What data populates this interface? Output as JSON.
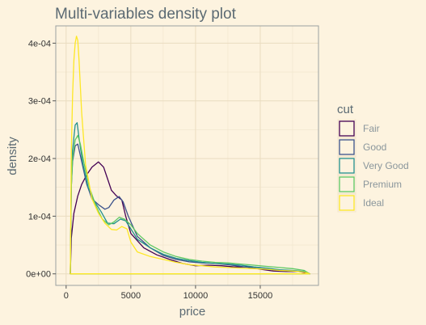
{
  "chart_data": {
    "type": "line",
    "title": "Multi-variables density plot",
    "xlabel": "price",
    "ylabel": "density",
    "xlim": [
      -800,
      19500
    ],
    "ylim": [
      -2e-05,
      0.00043
    ],
    "x_ticks": [
      0,
      5000,
      10000,
      15000
    ],
    "x_tick_labels": [
      "0",
      "5000",
      "10000",
      "15000"
    ],
    "y_ticks": [
      0,
      0.0001,
      0.0002,
      0.0003,
      0.0004
    ],
    "y_tick_labels": [
      "0e+00",
      "1e-04",
      "2e-04",
      "3e-04",
      "4e-04"
    ],
    "grid": true,
    "legend": {
      "title": "cut",
      "position": "right"
    },
    "series": [
      {
        "name": "Fair",
        "color": "#440154",
        "x": [
          326,
          400,
          600,
          900,
          1200,
          1600,
          2000,
          2500,
          2900,
          3200,
          3500,
          3900,
          4300,
          4600,
          5000,
          6000,
          7000,
          8000,
          9000,
          10000,
          11000,
          12000,
          13000,
          14000,
          15000,
          16000,
          17000,
          18000,
          18823
        ],
        "y": [
          0,
          6.2e-05,
          0.000105,
          0.000135,
          0.000155,
          0.000172,
          0.000185,
          0.000194,
          0.000185,
          0.000165,
          0.000145,
          0.000135,
          0.000128,
          0.0001,
          7e-05,
          4.5e-05,
          3.3e-05,
          2.5e-05,
          1.8e-05,
          1.4e-05,
          1.5e-05,
          1.4e-05,
          1.2e-05,
          1.2e-05,
          8e-06,
          5e-06,
          4e-06,
          4e-06,
          0
        ]
      },
      {
        "name": "Good",
        "color": "#3b528b",
        "x": [
          326,
          400,
          500,
          700,
          900,
          1200,
          1600,
          2000,
          2500,
          3000,
          3300,
          3700,
          4100,
          4400,
          4800,
          5500,
          6500,
          7500,
          8500,
          9500,
          10500,
          11500,
          12500,
          13500,
          14500,
          15500,
          16500,
          17500,
          18400,
          18823
        ],
        "y": [
          0,
          0.00015,
          0.000195,
          0.000222,
          0.000225,
          0.000195,
          0.000155,
          0.00013,
          0.00012,
          0.000112,
          0.000115,
          0.000128,
          0.000134,
          0.000125,
          0.0001,
          6.5e-05,
          4.5e-05,
          3.2e-05,
          2.5e-05,
          2.1e-05,
          1.9e-05,
          1.8e-05,
          1.6e-05,
          1.3e-05,
          1e-05,
          8e-06,
          6e-06,
          5e-06,
          4e-06,
          0
        ]
      },
      {
        "name": "Very Good",
        "color": "#21908d",
        "x": [
          326,
          400,
          500,
          700,
          850,
          1000,
          1300,
          1700,
          2200,
          2700,
          3200,
          3700,
          4200,
          4600,
          5000,
          5500,
          6500,
          7500,
          8500,
          9500,
          10500,
          11500,
          12500,
          13500,
          14500,
          15500,
          16500,
          17500,
          18400,
          18823
        ],
        "y": [
          0,
          0.00016,
          0.000215,
          0.000258,
          0.000262,
          0.000235,
          0.00019,
          0.00015,
          0.000125,
          0.000108,
          8.8e-05,
          8.7e-05,
          9.5e-05,
          9.2e-05,
          7.8e-05,
          6e-05,
          4.5e-05,
          3.4e-05,
          2.7e-05,
          2.3e-05,
          2e-05,
          1.8e-05,
          1.7e-05,
          1.5e-05,
          1.2e-05,
          1e-05,
          7e-06,
          6e-06,
          4e-06,
          0
        ]
      },
      {
        "name": "Premium",
        "color": "#5dc863",
        "x": [
          326,
          400,
          500,
          700,
          900,
          1100,
          1400,
          1800,
          2300,
          2800,
          3300,
          3700,
          4100,
          4500,
          5000,
          5500,
          6500,
          7500,
          8500,
          9500,
          10500,
          11500,
          12500,
          13500,
          14500,
          15500,
          16500,
          17500,
          18400,
          18823
        ],
        "y": [
          0,
          0.00015,
          0.0002,
          0.000232,
          0.00024,
          0.000225,
          0.00019,
          0.00015,
          0.000118,
          9.5e-05,
          8.5e-05,
          9e-05,
          9.8e-05,
          9.5e-05,
          8.5e-05,
          7e-05,
          5e-05,
          3.8e-05,
          3e-05,
          2.5e-05,
          2.2e-05,
          2e-05,
          1.9e-05,
          1.7e-05,
          1.5e-05,
          1.3e-05,
          1.1e-05,
          9e-06,
          6e-06,
          0
        ]
      },
      {
        "name": "Ideal",
        "color": "#fde725",
        "x": [
          326,
          400,
          500,
          600,
          700,
          800,
          900,
          1000,
          1200,
          1500,
          2000,
          2500,
          3000,
          3500,
          3900,
          4300,
          4700,
          5000,
          5500,
          6500,
          7500,
          8500,
          9500,
          10500,
          11500,
          12500,
          13500,
          14500,
          15500,
          16500,
          17500,
          18400,
          18823
        ],
        "y": [
          0,
          0.00021,
          0.00031,
          0.00037,
          0.0004,
          0.000412,
          0.000405,
          0.00037,
          0.00028,
          0.00019,
          0.00013,
          0.000105,
          8.8e-05,
          7.7e-05,
          7.6e-05,
          8.2e-05,
          7.8e-05,
          5.5e-05,
          3.8e-05,
          3e-05,
          2.5e-05,
          2e-05,
          1.6e-05,
          1.4e-05,
          1.2e-05,
          1.1e-05,
          1e-05,
          9e-06,
          8e-06,
          6e-06,
          5e-06,
          3e-06,
          0
        ]
      }
    ]
  }
}
